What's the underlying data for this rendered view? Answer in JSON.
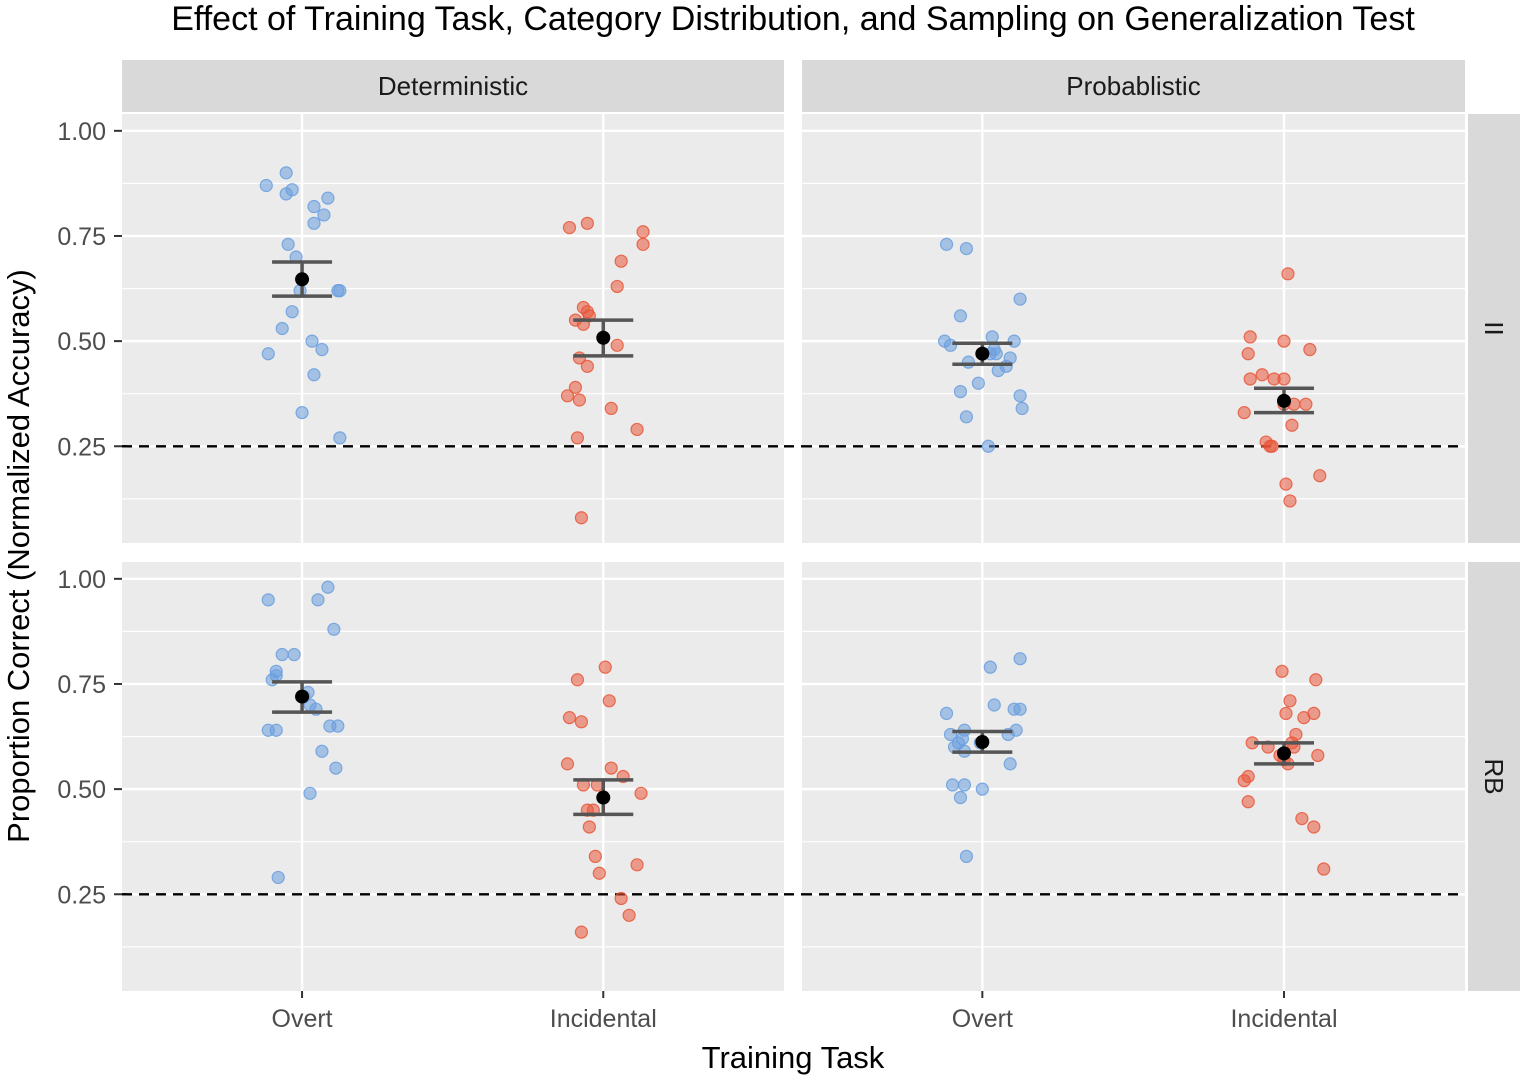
{
  "chart_data": {
    "type": "scatter",
    "title": "Effect of Training Task, Category Distribution, and Sampling on Generalization Test",
    "xlabel": "Training Task",
    "ylabel": "Proportion Correct (Normalized Accuracy)",
    "x_categories": [
      "Overt",
      "Incidental"
    ],
    "y_ticks": [
      "0.25",
      "0.50",
      "0.75",
      "1.00"
    ],
    "y_tick_values": [
      0.25,
      0.5,
      0.75,
      1.0
    ],
    "ylim": [
      0.02,
      1.04
    ],
    "reference_line": 0.25,
    "col_facets": [
      "Deterministic",
      "Probablistic"
    ],
    "row_facets": [
      "II",
      "RB"
    ],
    "colors": {
      "Overt": "#6a9fde",
      "Incidental": "#e8573a",
      "mean": "#000000",
      "errorbar": "#555555",
      "panel": "#ebebeb",
      "strip": "#d9d9d9",
      "grid": "#ffffff"
    },
    "panels": [
      {
        "col": "Deterministic",
        "row": "II",
        "groups": [
          {
            "task": "Overt",
            "mean": 0.647,
            "se_low": 0.607,
            "se_high": 0.688,
            "points": [
              [
                -0.18,
                0.87
              ],
              [
                -0.08,
                0.9
              ],
              [
                -0.08,
                0.85
              ],
              [
                -0.05,
                0.86
              ],
              [
                0.06,
                0.82
              ],
              [
                0.11,
                0.8
              ],
              [
                0.13,
                0.84
              ],
              [
                0.06,
                0.78
              ],
              [
                -0.07,
                0.73
              ],
              [
                -0.03,
                0.7
              ],
              [
                -0.01,
                0.62
              ],
              [
                0.18,
                0.62
              ],
              [
                0.19,
                0.62
              ],
              [
                -0.05,
                0.57
              ],
              [
                -0.1,
                0.53
              ],
              [
                -0.17,
                0.47
              ],
              [
                0.05,
                0.5
              ],
              [
                0.1,
                0.48
              ],
              [
                0.06,
                0.42
              ],
              [
                0.0,
                0.33
              ],
              [
                0.19,
                0.27
              ]
            ]
          },
          {
            "task": "Incidental",
            "mean": 0.508,
            "se_low": 0.465,
            "se_high": 0.55,
            "points": [
              [
                -0.17,
                0.77
              ],
              [
                -0.08,
                0.78
              ],
              [
                0.2,
                0.76
              ],
              [
                0.2,
                0.73
              ],
              [
                0.09,
                0.69
              ],
              [
                0.07,
                0.63
              ],
              [
                -0.1,
                0.58
              ],
              [
                -0.08,
                0.57
              ],
              [
                -0.07,
                0.56
              ],
              [
                -0.14,
                0.55
              ],
              [
                -0.1,
                0.54
              ],
              [
                0.07,
                0.49
              ],
              [
                -0.12,
                0.46
              ],
              [
                -0.08,
                0.44
              ],
              [
                -0.14,
                0.39
              ],
              [
                -0.18,
                0.37
              ],
              [
                -0.12,
                0.36
              ],
              [
                0.04,
                0.34
              ],
              [
                0.17,
                0.29
              ],
              [
                -0.13,
                0.27
              ],
              [
                -0.11,
                0.08
              ]
            ]
          }
        ]
      },
      {
        "col": "Probablistic",
        "row": "II",
        "groups": [
          {
            "task": "Overt",
            "mean": 0.47,
            "se_low": 0.445,
            "se_high": 0.495,
            "points": [
              [
                -0.18,
                0.73
              ],
              [
                -0.08,
                0.72
              ],
              [
                0.19,
                0.6
              ],
              [
                -0.11,
                0.56
              ],
              [
                -0.19,
                0.5
              ],
              [
                -0.16,
                0.49
              ],
              [
                -0.07,
                0.45
              ],
              [
                0.05,
                0.51
              ],
              [
                0.16,
                0.5
              ],
              [
                0.06,
                0.48
              ],
              [
                0.04,
                0.47
              ],
              [
                0.07,
                0.47
              ],
              [
                0.14,
                0.46
              ],
              [
                0.12,
                0.44
              ],
              [
                0.08,
                0.43
              ],
              [
                -0.02,
                0.4
              ],
              [
                -0.11,
                0.38
              ],
              [
                0.19,
                0.37
              ],
              [
                0.2,
                0.34
              ],
              [
                -0.08,
                0.32
              ],
              [
                0.03,
                0.25
              ]
            ]
          },
          {
            "task": "Incidental",
            "mean": 0.358,
            "se_low": 0.33,
            "se_high": 0.388,
            "points": [
              [
                0.02,
                0.66
              ],
              [
                -0.17,
                0.51
              ],
              [
                0.0,
                0.5
              ],
              [
                -0.18,
                0.47
              ],
              [
                0.13,
                0.48
              ],
              [
                -0.11,
                0.42
              ],
              [
                -0.17,
                0.41
              ],
              [
                -0.05,
                0.41
              ],
              [
                0.0,
                0.41
              ],
              [
                -0.2,
                0.33
              ],
              [
                0.0,
                0.35
              ],
              [
                0.05,
                0.35
              ],
              [
                0.11,
                0.35
              ],
              [
                0.04,
                0.3
              ],
              [
                -0.09,
                0.26
              ],
              [
                -0.07,
                0.25
              ],
              [
                -0.06,
                0.25
              ],
              [
                0.18,
                0.18
              ],
              [
                0.01,
                0.16
              ],
              [
                0.03,
                0.12
              ]
            ]
          }
        ]
      },
      {
        "col": "Deterministic",
        "row": "RB",
        "groups": [
          {
            "task": "Overt",
            "mean": 0.72,
            "se_low": 0.683,
            "se_high": 0.755,
            "points": [
              [
                -0.17,
                0.95
              ],
              [
                0.13,
                0.98
              ],
              [
                0.08,
                0.95
              ],
              [
                0.16,
                0.88
              ],
              [
                -0.1,
                0.82
              ],
              [
                -0.04,
                0.82
              ],
              [
                -0.13,
                0.78
              ],
              [
                -0.13,
                0.77
              ],
              [
                -0.15,
                0.76
              ],
              [
                0.03,
                0.73
              ],
              [
                0.01,
                0.72
              ],
              [
                0.04,
                0.7
              ],
              [
                0.07,
                0.69
              ],
              [
                -0.17,
                0.64
              ],
              [
                -0.13,
                0.64
              ],
              [
                0.14,
                0.65
              ],
              [
                0.18,
                0.65
              ],
              [
                0.1,
                0.59
              ],
              [
                0.17,
                0.55
              ],
              [
                0.04,
                0.49
              ],
              [
                -0.12,
                0.29
              ]
            ]
          },
          {
            "task": "Incidental",
            "mean": 0.48,
            "se_low": 0.44,
            "se_high": 0.522,
            "points": [
              [
                0.01,
                0.79
              ],
              [
                -0.13,
                0.76
              ],
              [
                0.03,
                0.71
              ],
              [
                -0.17,
                0.67
              ],
              [
                -0.11,
                0.66
              ],
              [
                -0.18,
                0.56
              ],
              [
                0.04,
                0.55
              ],
              [
                0.1,
                0.53
              ],
              [
                -0.1,
                0.51
              ],
              [
                -0.03,
                0.51
              ],
              [
                0.19,
                0.49
              ],
              [
                -0.08,
                0.45
              ],
              [
                -0.05,
                0.45
              ],
              [
                -0.07,
                0.41
              ],
              [
                -0.04,
                0.34
              ],
              [
                0.17,
                0.32
              ],
              [
                -0.02,
                0.3
              ],
              [
                0.09,
                0.24
              ],
              [
                0.13,
                0.2
              ],
              [
                -0.11,
                0.16
              ]
            ]
          }
        ]
      },
      {
        "col": "Probablistic",
        "row": "RB",
        "groups": [
          {
            "task": "Overt",
            "mean": 0.612,
            "se_low": 0.588,
            "se_high": 0.637,
            "points": [
              [
                0.19,
                0.81
              ],
              [
                0.04,
                0.79
              ],
              [
                0.06,
                0.7
              ],
              [
                0.16,
                0.69
              ],
              [
                0.19,
                0.69
              ],
              [
                -0.18,
                0.68
              ],
              [
                0.17,
                0.64
              ],
              [
                -0.09,
                0.64
              ],
              [
                -0.16,
                0.63
              ],
              [
                -0.1,
                0.62
              ],
              [
                -0.12,
                0.61
              ],
              [
                0.13,
                0.63
              ],
              [
                -0.14,
                0.6
              ],
              [
                -0.09,
                0.59
              ],
              [
                -0.01,
                0.61
              ],
              [
                0.14,
                0.56
              ],
              [
                -0.15,
                0.51
              ],
              [
                -0.09,
                0.51
              ],
              [
                -0.11,
                0.48
              ],
              [
                0.0,
                0.5
              ],
              [
                -0.08,
                0.34
              ]
            ]
          },
          {
            "task": "Incidental",
            "mean": 0.585,
            "se_low": 0.56,
            "se_high": 0.61,
            "points": [
              [
                -0.01,
                0.78
              ],
              [
                0.16,
                0.76
              ],
              [
                0.03,
                0.71
              ],
              [
                0.01,
                0.68
              ],
              [
                0.15,
                0.68
              ],
              [
                0.1,
                0.67
              ],
              [
                0.06,
                0.63
              ],
              [
                -0.16,
                0.61
              ],
              [
                -0.08,
                0.6
              ],
              [
                0.04,
                0.61
              ],
              [
                0.05,
                0.6
              ],
              [
                -0.02,
                0.58
              ],
              [
                0.17,
                0.58
              ],
              [
                0.0,
                0.57
              ],
              [
                0.02,
                0.56
              ],
              [
                -0.18,
                0.53
              ],
              [
                -0.2,
                0.52
              ],
              [
                -0.18,
                0.47
              ],
              [
                0.09,
                0.43
              ],
              [
                0.15,
                0.41
              ],
              [
                0.2,
                0.31
              ]
            ]
          }
        ]
      }
    ]
  }
}
